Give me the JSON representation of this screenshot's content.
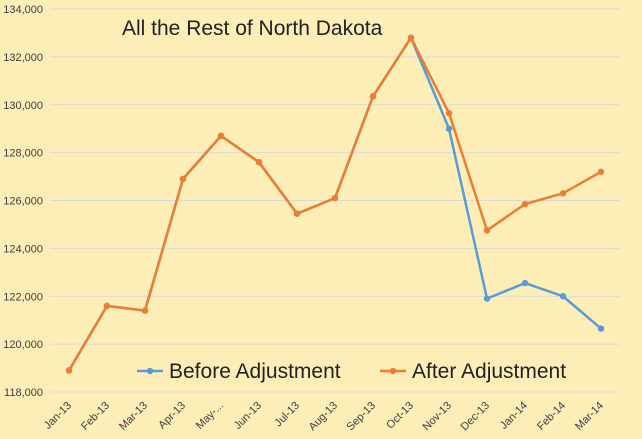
{
  "chart_data": {
    "type": "line",
    "title": "All the Rest of North Dakota",
    "categories": [
      "Jan-13",
      "Feb-13",
      "Mar-13",
      "Apr-13",
      "May-...",
      "Jun-13",
      "Jul-13",
      "Aug-13",
      "Sep-13",
      "Oct-13",
      "Nov-13",
      "Dec-13",
      "Jan-14",
      "Feb-14",
      "Mar-14"
    ],
    "ylim": [
      118000,
      134000
    ],
    "yticks": [
      118000,
      120000,
      122000,
      124000,
      126000,
      128000,
      130000,
      132000,
      134000
    ],
    "ytick_labels": [
      "118,000",
      "120,000",
      "122,000",
      "124,000",
      "126,000",
      "128,000",
      "130,000",
      "132,000",
      "134,000"
    ],
    "grid": "horizontal",
    "legend_position": "bottom-right",
    "series": [
      {
        "name": "Before Adjustment",
        "color": "#5b9bd5",
        "values": [
          118900,
          121600,
          121400,
          126900,
          128700,
          127600,
          125450,
          126100,
          130350,
          132800,
          129000,
          121900,
          122550,
          122000,
          120650
        ]
      },
      {
        "name": "After Adjustment",
        "color": "#ed7d31",
        "values": [
          118900,
          121600,
          121400,
          126900,
          128700,
          127600,
          125450,
          126100,
          130350,
          132800,
          129650,
          124750,
          125850,
          126300,
          127200
        ]
      }
    ]
  }
}
